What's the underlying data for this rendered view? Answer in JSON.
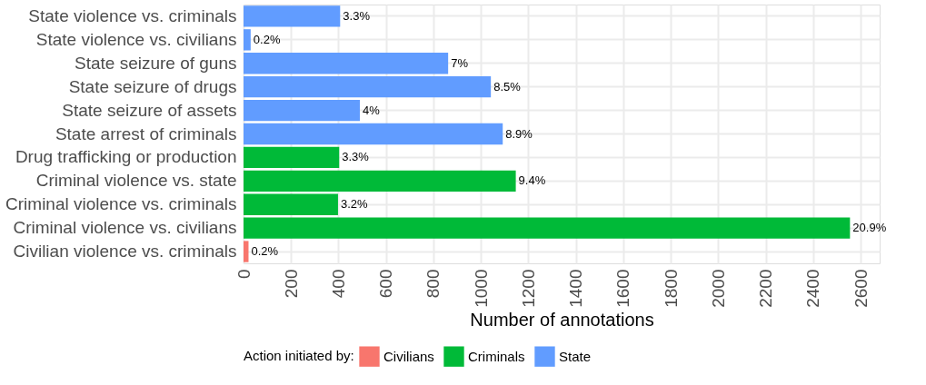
{
  "chart_data": {
    "type": "bar",
    "orientation": "horizontal",
    "xlabel": "Number of annotations",
    "legend_title": "Action initiated by:",
    "legend": "bottom",
    "grid": true,
    "categories": [
      "State violence vs. criminals",
      "State violence vs. civilians",
      "State seizure of guns",
      "State seizure of drugs",
      "State seizure of assets",
      "State arrest of criminals",
      "Drug trafficking or production",
      "Criminal violence vs. state",
      "Criminal violence vs. criminals",
      "Criminal violence vs. civilians",
      "Civilian violence vs. criminals"
    ],
    "series": [
      {
        "name": "Civilians",
        "color": "#f8766d",
        "values": [
          null,
          null,
          null,
          null,
          null,
          null,
          null,
          null,
          null,
          null,
          21
        ]
      },
      {
        "name": "Criminals",
        "color": "#00ba38",
        "values": [
          null,
          null,
          null,
          null,
          null,
          null,
          403,
          1147,
          398,
          2555,
          null
        ]
      },
      {
        "name": "State",
        "color": "#619cff",
        "values": [
          407,
          30,
          862,
          1042,
          490,
          1092,
          null,
          null,
          null,
          null,
          null
        ]
      }
    ],
    "annotations": [
      {
        "text": "3.3%",
        "x": 407,
        "y": "State violence vs. criminals"
      },
      {
        "text": "0.2%",
        "x": 30,
        "y": "State violence vs. civilians"
      },
      {
        "text": "7%",
        "x": 862,
        "y": "State seizure of guns"
      },
      {
        "text": "8.5%",
        "x": 1042,
        "y": "State seizure of drugs"
      },
      {
        "text": "4%",
        "x": 490,
        "y": "State seizure of assets"
      },
      {
        "text": "8.9%",
        "x": 1092,
        "y": "State arrest of criminals"
      },
      {
        "text": "3.3%",
        "x": 403,
        "y": "Drug trafficking or production"
      },
      {
        "text": "9.4%",
        "x": 1147,
        "y": "Criminal violence vs. state"
      },
      {
        "text": "3.2%",
        "x": 398,
        "y": "Criminal violence vs. criminals"
      },
      {
        "text": "20.9%",
        "x": 2555,
        "y": "Criminal violence vs. civilians"
      },
      {
        "text": "0.2%",
        "x": 21,
        "y": "Civilian violence vs. criminals"
      }
    ],
    "xlim": [
      0,
      2680
    ],
    "xticks": [
      0,
      200,
      400,
      600,
      800,
      1000,
      1200,
      1400,
      1600,
      1800,
      2000,
      2200,
      2400,
      2600
    ]
  }
}
